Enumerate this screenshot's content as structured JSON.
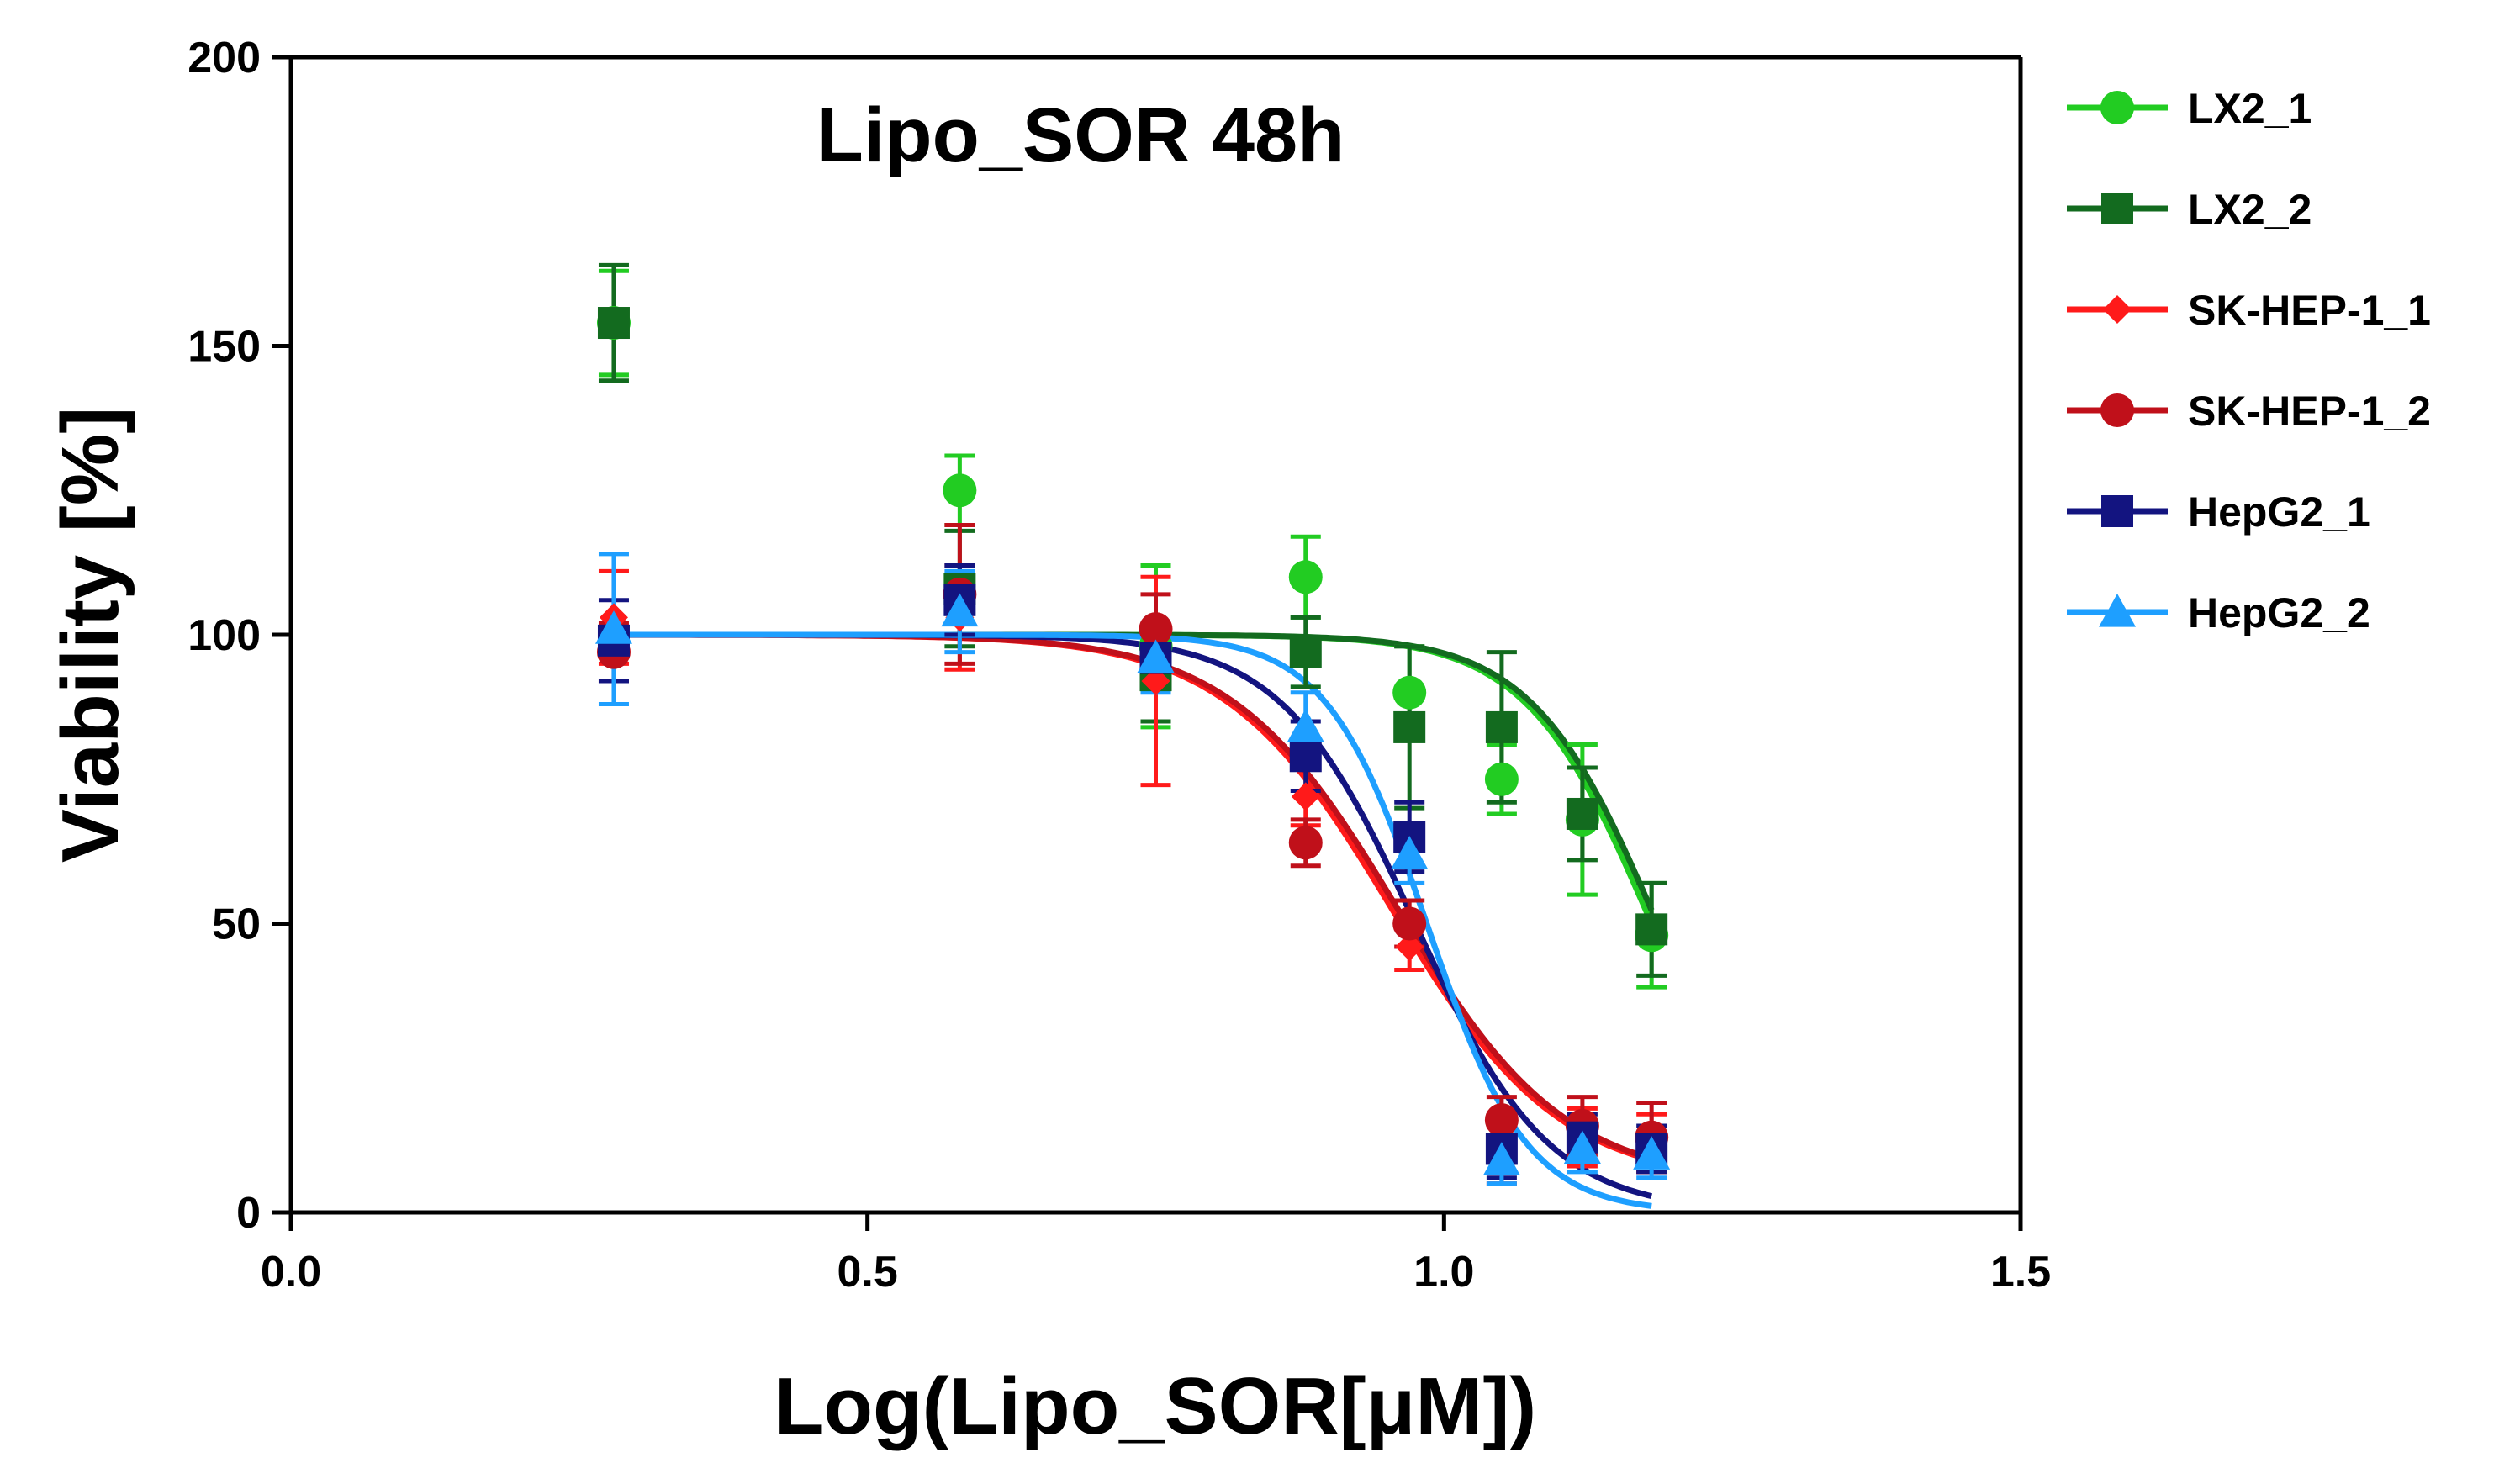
{
  "chart_data": {
    "type": "scatter",
    "title": "Lipo_SOR 48h",
    "xlabel": "Log(Lipo_SOR[μM])",
    "ylabel": "Viability [%]",
    "xlim": [
      0.0,
      1.5
    ],
    "ylim": [
      0,
      200
    ],
    "x_ticks": [
      0.0,
      0.5,
      1.0,
      1.5
    ],
    "x_tick_labels": [
      "0.0",
      "0.5",
      "1.0",
      "1.5"
    ],
    "y_ticks": [
      0,
      50,
      100,
      150,
      200
    ],
    "y_tick_labels": [
      "0",
      "50",
      "100",
      "150",
      "200"
    ],
    "legend_position": "right, outside plot",
    "x": [
      0.28,
      0.58,
      0.75,
      0.88,
      0.97,
      1.05,
      1.12,
      1.18
    ],
    "series": [
      {
        "name": "LX2_1",
        "color": "#22cc22",
        "marker": "circle",
        "values": [
          154,
          125,
          98,
          110,
          90,
          75,
          68,
          48
        ],
        "errors": [
          9,
          6,
          14,
          7,
          8,
          6,
          13,
          9
        ],
        "fit": {
          "top": 100,
          "bottom": 0,
          "logIC50": 1.18,
          "hill": 8
        }
      },
      {
        "name": "LX2_2",
        "color": "#136b1f",
        "marker": "square",
        "values": [
          154,
          108,
          93,
          97,
          84,
          84,
          69,
          49
        ],
        "errors": [
          10,
          10,
          8,
          6,
          14,
          13,
          8,
          8
        ],
        "fit": {
          "top": 100,
          "bottom": 0,
          "logIC50": 1.185,
          "hill": 8
        }
      },
      {
        "name": "SK-HEP-1_1",
        "color": "#ff1a1a",
        "marker": "diamond",
        "values": [
          103,
          103,
          92,
          72,
          46,
          10,
          13,
          12
        ],
        "errors": [
          8,
          9,
          18,
          5,
          4,
          5,
          5,
          5
        ],
        "fit": {
          "top": 100,
          "bottom": 5,
          "logIC50": 0.955,
          "hill": 6
        }
      },
      {
        "name": "SK-HEP-1_2",
        "color": "#c0101a",
        "marker": "circle",
        "values": [
          97,
          107,
          101,
          64,
          50,
          16,
          15,
          13
        ],
        "errors": [
          5,
          12,
          6,
          4,
          4,
          4,
          5,
          6
        ],
        "fit": {
          "top": 100,
          "bottom": 5,
          "logIC50": 0.96,
          "hill": 6
        }
      },
      {
        "name": "HepG2_1",
        "color": "#131480",
        "marker": "square",
        "values": [
          99,
          106,
          96,
          79,
          65,
          11,
          13,
          11
        ],
        "errors": [
          7,
          6,
          5,
          6,
          6,
          5,
          4,
          4
        ],
        "fit": {
          "top": 100,
          "bottom": 0,
          "logIC50": 0.975,
          "hill": 7.5
        }
      },
      {
        "name": "HepG2_2",
        "color": "#1e9fff",
        "marker": "triangle",
        "values": [
          101,
          104,
          96,
          84,
          62,
          9,
          11,
          10
        ],
        "errors": [
          13,
          7,
          6,
          6,
          5,
          4,
          4,
          4
        ],
        "fit": {
          "top": 100,
          "bottom": 0,
          "logIC50": 0.985,
          "hill": 10
        }
      }
    ]
  }
}
